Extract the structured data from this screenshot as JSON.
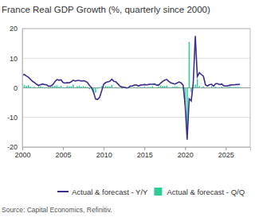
{
  "chart_data": {
    "type": "line",
    "title": "France Real GDP Growth (%, quarterly since 2000)",
    "source": "Source: Capital Economics, Refinitiv.",
    "x": [
      2000,
      2000.25,
      2000.5,
      2000.75,
      2001,
      2001.25,
      2001.5,
      2001.75,
      2002,
      2002.25,
      2002.5,
      2002.75,
      2003,
      2003.25,
      2003.5,
      2003.75,
      2004,
      2004.25,
      2004.5,
      2004.75,
      2005,
      2005.25,
      2005.5,
      2005.75,
      2006,
      2006.25,
      2006.5,
      2006.75,
      2007,
      2007.25,
      2007.5,
      2007.75,
      2008,
      2008.25,
      2008.5,
      2008.75,
      2009,
      2009.25,
      2009.5,
      2009.75,
      2010,
      2010.25,
      2010.5,
      2010.75,
      2011,
      2011.25,
      2011.5,
      2011.75,
      2012,
      2012.25,
      2012.5,
      2012.75,
      2013,
      2013.25,
      2013.5,
      2013.75,
      2014,
      2014.25,
      2014.5,
      2014.75,
      2015,
      2015.25,
      2015.5,
      2015.75,
      2016,
      2016.25,
      2016.5,
      2016.75,
      2017,
      2017.25,
      2017.5,
      2017.75,
      2018,
      2018.25,
      2018.5,
      2018.75,
      2019,
      2019.25,
      2019.5,
      2019.75,
      2020,
      2020.25,
      2020.5,
      2020.75,
      2021,
      2021.25,
      2021.5,
      2021.75,
      2022,
      2022.25,
      2022.5,
      2022.75,
      2023,
      2023.25,
      2023.5,
      2023.75,
      2024,
      2024.25,
      2024.5,
      2024.75,
      2025,
      2025.25,
      2025.5,
      2025.75,
      2026,
      2026.25,
      2026.5,
      2026.75
    ],
    "series": [
      {
        "name": "Actual & forecast - Y/Y",
        "type": "line",
        "color": "#3c2d8e",
        "values": [
          4.3,
          4.5,
          4.0,
          3.6,
          2.9,
          2.2,
          1.8,
          1.2,
          0.8,
          1.1,
          1.3,
          1.1,
          1.0,
          0.5,
          0.7,
          1.1,
          2.1,
          2.8,
          2.6,
          2.7,
          1.8,
          1.6,
          1.7,
          1.7,
          2.0,
          2.6,
          2.3,
          2.5,
          2.5,
          2.3,
          2.4,
          2.2,
          1.8,
          0.8,
          0.1,
          -1.5,
          -3.8,
          -3.9,
          -3.2,
          -1.0,
          1.2,
          1.8,
          2.0,
          2.2,
          2.9,
          2.2,
          2.0,
          1.3,
          0.5,
          0.3,
          0.2,
          0.0,
          0.0,
          0.6,
          0.6,
          0.9,
          1.0,
          0.6,
          0.9,
          1.0,
          1.1,
          1.0,
          1.1,
          1.2,
          1.2,
          1.3,
          0.9,
          0.9,
          1.6,
          2.2,
          2.6,
          2.8,
          2.2,
          1.7,
          1.5,
          1.3,
          1.6,
          2.0,
          1.7,
          0.9,
          -5.6,
          -17.5,
          -3.7,
          -4.4,
          1.6,
          17.5,
          3.8,
          5.1,
          4.5,
          3.9,
          1.0,
          0.6,
          1.1,
          1.2,
          0.6,
          1.4,
          1.4,
          1.1,
          1.3,
          0.7,
          0.6,
          0.7,
          0.9,
          1.0,
          1.0,
          1.1,
          1.1,
          1.2
        ]
      },
      {
        "name": "Actual & forecast - Q/Q",
        "type": "bar",
        "color": "#2ecc9a",
        "values": [
          1.1,
          0.9,
          0.7,
          0.9,
          0.4,
          0.2,
          0.4,
          -0.1,
          0.5,
          0.5,
          0.3,
          -0.2,
          0.2,
          -0.2,
          0.6,
          0.6,
          0.7,
          0.8,
          0.4,
          0.7,
          0.2,
          0.2,
          0.6,
          0.5,
          0.5,
          1.1,
          0.1,
          0.6,
          0.7,
          0.4,
          0.6,
          0.4,
          0.3,
          -0.5,
          -0.3,
          -1.6,
          -1.6,
          -0.3,
          0.2,
          0.6,
          0.2,
          0.6,
          0.5,
          0.5,
          1.0,
          0.0,
          0.3,
          0.1,
          0.1,
          -0.3,
          0.2,
          -0.2,
          0.0,
          0.6,
          0.0,
          0.3,
          0.1,
          -0.1,
          0.3,
          0.1,
          0.4,
          0.0,
          0.3,
          0.3,
          0.6,
          -0.1,
          0.2,
          0.5,
          0.8,
          0.6,
          0.6,
          0.8,
          0.2,
          0.2,
          0.4,
          0.5,
          0.5,
          0.3,
          0.2,
          -0.1,
          -5.8,
          -13.2,
          15.5,
          -1.4,
          0.2,
          1.1,
          3.0,
          0.6,
          -0.1,
          0.5,
          0.1,
          0.1,
          0.1,
          0.6,
          0.0,
          0.4,
          0.1,
          0.2,
          0.4,
          -0.1,
          0.1,
          0.3,
          0.5,
          0.2,
          0.3,
          0.3,
          0.3,
          0.3
        ]
      }
    ],
    "xlim": [
      2000,
      2028
    ],
    "xticks": [
      2000,
      2005,
      2010,
      2015,
      2020,
      2025
    ],
    "ylim": [
      -20,
      20
    ],
    "yticks": [
      -20,
      -10,
      0,
      10,
      20
    ],
    "grid": true,
    "legend": "bottom"
  }
}
